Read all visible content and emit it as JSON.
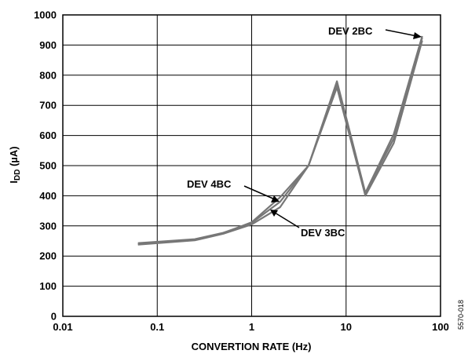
{
  "chart_data": {
    "type": "line",
    "xlabel": "CONVERTION RATE (Hz)",
    "ylabel_main": "I",
    "ylabel_sub": "DD",
    "ylabel_unit": " (µA)",
    "xscale": "log",
    "xlim": [
      0.01,
      100
    ],
    "ylim": [
      0,
      1000
    ],
    "grid": true,
    "x_tick_labels": [
      "0.01",
      "0.1",
      "1",
      "10",
      "100"
    ],
    "y_tick_labels": [
      "0",
      "100",
      "200",
      "300",
      "400",
      "500",
      "600",
      "700",
      "800",
      "900",
      "1000"
    ],
    "series": [
      {
        "name": "DEV 2BC",
        "x": [
          0.0625,
          0.25,
          0.5,
          1,
          2,
          4,
          8,
          16,
          32,
          64
        ],
        "y": [
          243,
          256,
          277,
          310,
          380,
          500,
          780,
          410,
          605,
          930
        ]
      },
      {
        "name": "DEV 3BC",
        "x": [
          0.0625,
          0.25,
          0.5,
          1,
          2,
          4,
          8,
          16,
          32,
          64
        ],
        "y": [
          238,
          252,
          274,
          305,
          362,
          500,
          760,
          400,
          575,
          915
        ]
      },
      {
        "name": "DEV 4BC",
        "x": [
          0.0625,
          0.25,
          0.5,
          1,
          2,
          4,
          8,
          16,
          32,
          64
        ],
        "y": [
          240,
          254,
          276,
          312,
          395,
          500,
          770,
          408,
          590,
          925
        ]
      }
    ],
    "annotations": [
      "DEV 2BC",
      "DEV 4BC",
      "DEV 3BC"
    ],
    "colors": {
      "line": "#777777",
      "grid": "#000000"
    }
  },
  "figure_id": "5570-018"
}
